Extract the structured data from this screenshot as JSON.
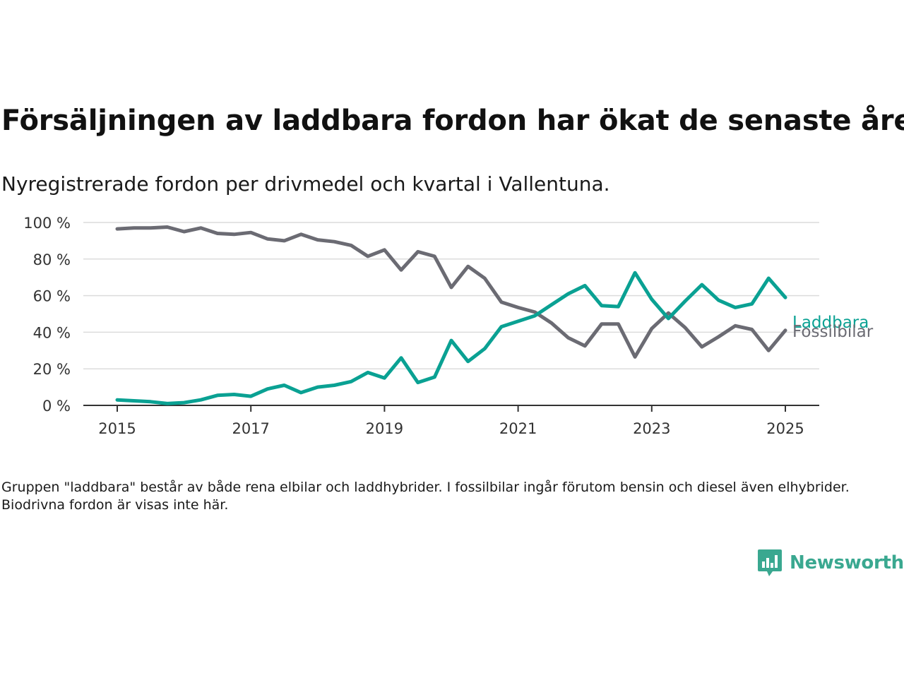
{
  "title": "Försäljningen av laddbara fordon har ökat de senaste åren",
  "subtitle": "Nyregistrerade fordon per drivmedel och kvartal i Vallentuna.",
  "note": "Gruppen \"laddbara\" består av både rena elbilar och laddhybrider. I fossilbilar ingår förutom bensin och diesel även elhybrider. Biodrivna fordon är visas inte här.",
  "brand": {
    "name": "Newsworthy",
    "icon": "newsworthy-logo-icon",
    "color": "#3aa890"
  },
  "chart_data": {
    "type": "line",
    "title": "Försäljningen av laddbara fordon har ökat de senaste åren",
    "subtitle": "Nyregistrerade fordon per drivmedel och kvartal i Vallentuna.",
    "xlabel": "",
    "ylabel": "",
    "x_ticks": [
      "2015",
      "2017",
      "2019",
      "2021",
      "2023",
      "2025"
    ],
    "y_ticks": [
      "0 %",
      "20 %",
      "40 %",
      "60 %",
      "80 %",
      "100 %"
    ],
    "xlim": [
      2014.5,
      2025.5
    ],
    "ylim": [
      0,
      100
    ],
    "grid": "horizontal",
    "legend": "direct labels at line ends (right)",
    "x": [
      2015.0,
      2015.25,
      2015.5,
      2015.75,
      2016.0,
      2016.25,
      2016.5,
      2016.75,
      2017.0,
      2017.25,
      2017.5,
      2017.75,
      2018.0,
      2018.25,
      2018.5,
      2018.75,
      2019.0,
      2019.25,
      2019.5,
      2019.75,
      2020.0,
      2020.25,
      2020.5,
      2020.75,
      2021.0,
      2021.25,
      2021.5,
      2021.75,
      2022.0,
      2022.25,
      2022.5,
      2022.75,
      2023.0,
      2023.25,
      2023.5,
      2023.75,
      2024.0,
      2024.25,
      2024.5,
      2024.75,
      2025.0
    ],
    "series": [
      {
        "name": "Laddbara",
        "color": "#0aa193",
        "values": [
          3,
          2.5,
          2,
          1,
          1.5,
          3,
          5.5,
          6,
          5,
          9,
          11,
          7,
          10,
          11,
          13,
          18,
          15,
          26,
          12.5,
          15.5,
          35.5,
          24,
          31,
          43,
          46,
          49,
          55,
          61,
          65.5,
          54.5,
          54,
          72.5,
          58,
          47.5,
          57,
          66,
          57.5,
          53.5,
          55.5,
          69.5,
          59
        ]
      },
      {
        "name": "Fossilbilar",
        "color": "#6b6b73",
        "values": [
          96.5,
          97,
          97,
          97.5,
          95,
          97,
          94,
          93.5,
          94.5,
          91,
          90,
          93.5,
          90.5,
          89.5,
          87.5,
          81.5,
          85,
          74,
          84,
          81.5,
          64.5,
          76,
          69.5,
          56.5,
          53.5,
          51,
          45,
          37,
          32.5,
          44.5,
          44.5,
          26.5,
          42,
          50.5,
          42.5,
          32,
          37.5,
          43.5,
          41.5,
          30,
          41
        ]
      }
    ]
  }
}
